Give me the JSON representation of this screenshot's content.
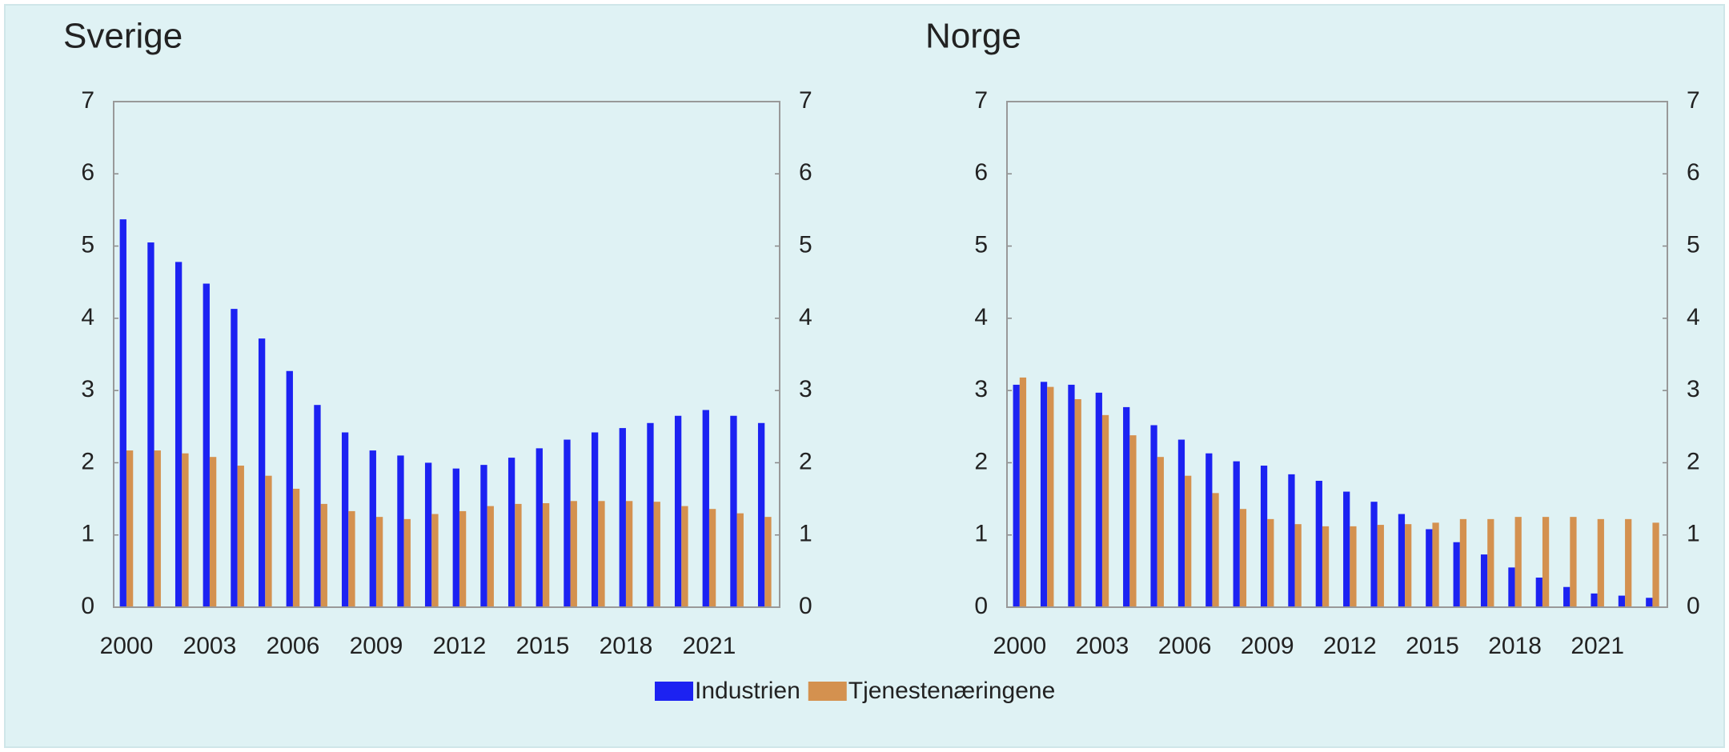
{
  "chart_data": [
    {
      "type": "bar",
      "title": "Sverige",
      "categories": [
        "2000",
        null,
        null,
        "2003",
        null,
        null,
        "2006",
        null,
        null,
        "2009",
        null,
        null,
        "2012",
        null,
        null,
        "2015",
        null,
        null,
        "2018",
        null,
        null,
        "2021",
        null,
        null
      ],
      "series": [
        {
          "name": "Industrien",
          "color": "#1c22f2",
          "values": [
            5.37,
            5.05,
            4.78,
            4.48,
            4.13,
            3.72,
            3.27,
            2.8,
            2.42,
            2.17,
            2.1,
            2.0,
            1.92,
            1.97,
            2.07,
            2.2,
            2.32,
            2.42,
            2.48,
            2.55,
            2.65,
            2.73,
            2.65,
            2.55
          ]
        },
        {
          "name": "Tjenestenæringene",
          "color": "#d4914f",
          "values": [
            2.17,
            2.17,
            2.13,
            2.08,
            1.96,
            1.82,
            1.64,
            1.43,
            1.33,
            1.25,
            1.22,
            1.29,
            1.33,
            1.4,
            1.43,
            1.44,
            1.47,
            1.47,
            1.47,
            1.46,
            1.4,
            1.36,
            1.3,
            1.25
          ]
        }
      ],
      "ylim": [
        0,
        7
      ],
      "yticks": [
        0,
        1,
        2,
        3,
        4,
        5,
        6,
        7
      ],
      "y2lim": [
        0,
        7
      ],
      "y2ticks": [
        0,
        1,
        2,
        3,
        4,
        5,
        6,
        7
      ]
    },
    {
      "type": "bar",
      "title": "Norge",
      "categories": [
        "2000",
        null,
        null,
        "2003",
        null,
        null,
        "2006",
        null,
        null,
        "2009",
        null,
        null,
        "2012",
        null,
        null,
        "2015",
        null,
        null,
        "2018",
        null,
        null,
        "2021",
        null,
        null
      ],
      "series": [
        {
          "name": "Industrien",
          "color": "#1c22f2",
          "values": [
            3.08,
            3.12,
            3.08,
            2.97,
            2.77,
            2.52,
            2.32,
            2.13,
            2.02,
            1.96,
            1.84,
            1.75,
            1.6,
            1.46,
            1.29,
            1.08,
            0.9,
            0.73,
            0.55,
            0.41,
            0.28,
            0.19,
            0.16,
            0.13
          ]
        },
        {
          "name": "Tjenestenæringene",
          "color": "#d4914f",
          "values": [
            3.18,
            3.05,
            2.88,
            2.66,
            2.38,
            2.08,
            1.82,
            1.58,
            1.36,
            1.22,
            1.15,
            1.12,
            1.12,
            1.14,
            1.15,
            1.17,
            1.22,
            1.22,
            1.25,
            1.25,
            1.25,
            1.22,
            1.22,
            1.17
          ]
        }
      ],
      "ylim": [
        0,
        7
      ],
      "yticks": [
        0,
        1,
        2,
        3,
        4,
        5,
        6,
        7
      ],
      "y2lim": [
        0,
        7
      ],
      "y2ticks": [
        0,
        1,
        2,
        3,
        4,
        5,
        6,
        7
      ]
    }
  ]
}
